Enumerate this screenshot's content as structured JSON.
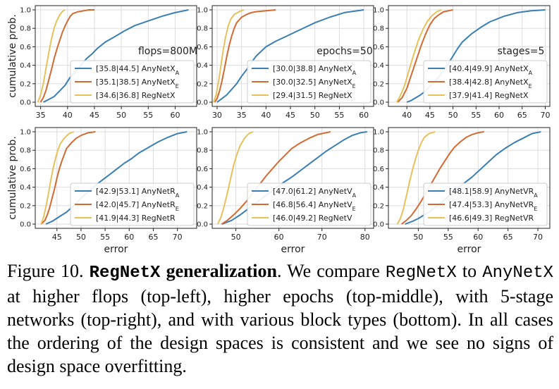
{
  "caption": {
    "figure_label": "Figure 10.",
    "title_mono": "RegNetX",
    "title_rest": "generalization",
    "sentence_1_a": "We compare",
    "sentence_1_mono_a": "RegNetX",
    "sentence_1_b": "to",
    "sentence_1_mono_b": "AnyNetX",
    "sentence_1_c": "at higher flops (top-left), higher epochs (top-middle), with 5-stage networks (top-right), and with various block types (bottom).",
    "sentence_2": "In all cases the ordering of the design spaces is consistent and we see no signs of design space overfitting."
  },
  "colors": {
    "blue": "#3a7fb4",
    "orange": "#d46a32",
    "yellow": "#e8c15a",
    "frame": "#222222",
    "grid": "#dddddd"
  },
  "chart_data": [
    {
      "type": "line",
      "title": "",
      "annotation": "flops=800M",
      "ylabel": "cumulative prob.",
      "xlabel": "",
      "xlim": [
        34,
        64
      ],
      "ylim": [
        0,
        1
      ],
      "xticks": [
        35,
        40,
        45,
        50,
        55,
        60
      ],
      "yticks": [
        0.0,
        0.2,
        0.4,
        0.6,
        0.8,
        1.0
      ],
      "legend_position": "right",
      "series": [
        {
          "name": "[35.8|44.5] AnyNetX",
          "sub": "A",
          "color": "blue",
          "x": [
            35.5,
            36.5,
            37.5,
            38.5,
            39.5,
            40.5,
            41.5,
            42.5,
            43.5,
            44.5,
            45.5,
            47,
            48.5,
            50.5,
            52.5,
            55,
            57.5,
            60,
            62.5
          ],
          "y": [
            0,
            0.03,
            0.06,
            0.12,
            0.18,
            0.27,
            0.33,
            0.4,
            0.47,
            0.52,
            0.58,
            0.65,
            0.7,
            0.77,
            0.83,
            0.88,
            0.93,
            0.97,
            1.0
          ]
        },
        {
          "name": "[35.1|38.5] AnyNetX",
          "sub": "E",
          "color": "orange",
          "x": [
            35,
            35.5,
            36,
            36.5,
            37,
            37.5,
            38,
            38.5,
            39,
            39.5,
            40,
            40.5,
            41,
            42,
            43,
            44,
            45
          ],
          "y": [
            0,
            0.05,
            0.13,
            0.24,
            0.35,
            0.47,
            0.57,
            0.66,
            0.75,
            0.82,
            0.88,
            0.93,
            0.96,
            0.98,
            0.99,
            1.0,
            1.0
          ]
        },
        {
          "name": "[34.6|36.8] RegNetX",
          "sub": "",
          "color": "yellow",
          "x": [
            34.5,
            35,
            35.5,
            36,
            36.5,
            37,
            37.5,
            38,
            38.5,
            39,
            39.5
          ],
          "y": [
            0,
            0.08,
            0.2,
            0.37,
            0.53,
            0.68,
            0.8,
            0.88,
            0.94,
            0.98,
            1.0
          ]
        }
      ]
    },
    {
      "type": "line",
      "title": "",
      "annotation": "epochs=50",
      "ylabel": "",
      "xlabel": "",
      "xlim": [
        29,
        62
      ],
      "ylim": [
        0,
        1
      ],
      "xticks": [
        30,
        35,
        40,
        45,
        50,
        55,
        60
      ],
      "yticks": [
        0.0,
        0.2,
        0.4,
        0.6,
        0.8,
        1.0
      ],
      "legend_position": "right",
      "series": [
        {
          "name": "[30.0|38.8] AnyNetX",
          "sub": "A",
          "color": "blue",
          "x": [
            30,
            31,
            32,
            33,
            34,
            35,
            36,
            37,
            38,
            39,
            40,
            42,
            44,
            46,
            48,
            50,
            53,
            56,
            60
          ],
          "y": [
            0,
            0.04,
            0.08,
            0.14,
            0.2,
            0.28,
            0.35,
            0.43,
            0.5,
            0.55,
            0.6,
            0.66,
            0.71,
            0.76,
            0.81,
            0.86,
            0.92,
            0.97,
            1.0
          ]
        },
        {
          "name": "[30.0|32.5] AnyNetX",
          "sub": "E",
          "color": "orange",
          "x": [
            29.5,
            30,
            30.5,
            31,
            31.5,
            32,
            32.5,
            33,
            33.5,
            34,
            35,
            36,
            37,
            38,
            40,
            42
          ],
          "y": [
            0,
            0.04,
            0.12,
            0.23,
            0.36,
            0.5,
            0.62,
            0.72,
            0.8,
            0.86,
            0.92,
            0.95,
            0.97,
            0.98,
            0.99,
            1.0
          ]
        },
        {
          "name": "[29.4|31.5] RegNetX",
          "sub": "",
          "color": "yellow",
          "x": [
            29.3,
            29.8,
            30.3,
            30.8,
            31.3,
            31.8,
            32.3,
            32.8,
            33.5,
            34.5,
            35.5
          ],
          "y": [
            0,
            0.08,
            0.22,
            0.4,
            0.58,
            0.72,
            0.83,
            0.9,
            0.95,
            0.98,
            1.0
          ]
        }
      ]
    },
    {
      "type": "line",
      "title": "",
      "annotation": "stages=5",
      "ylabel": "",
      "xlabel": "",
      "xlim": [
        36,
        71
      ],
      "ylim": [
        0,
        1
      ],
      "xticks": [
        40,
        45,
        50,
        55,
        60,
        65,
        70
      ],
      "yticks": [
        0.0,
        0.2,
        0.4,
        0.6,
        0.8,
        1.0
      ],
      "legend_position": "right",
      "series": [
        {
          "name": "[40.4|49.9] AnyNetX",
          "sub": "A",
          "color": "blue",
          "x": [
            40,
            41,
            42,
            43,
            44,
            45,
            46,
            47,
            48,
            49,
            50,
            51,
            52,
            54,
            56,
            58,
            61,
            64,
            67,
            70
          ],
          "y": [
            0,
            0.02,
            0.05,
            0.08,
            0.12,
            0.17,
            0.22,
            0.28,
            0.35,
            0.42,
            0.5,
            0.58,
            0.65,
            0.74,
            0.81,
            0.87,
            0.93,
            0.97,
            0.99,
            1.0
          ]
        },
        {
          "name": "[38.4|42.8] AnyNetX",
          "sub": "E",
          "color": "orange",
          "x": [
            38,
            39,
            40,
            41,
            42,
            43,
            44,
            45,
            46,
            47,
            48,
            49,
            50
          ],
          "y": [
            0,
            0.05,
            0.15,
            0.3,
            0.45,
            0.6,
            0.73,
            0.84,
            0.91,
            0.95,
            0.98,
            0.99,
            1.0
          ]
        },
        {
          "name": "[37.9|41.4] RegNetX",
          "sub": "",
          "color": "yellow",
          "x": [
            37.8,
            38.5,
            39.5,
            40.5,
            41.5,
            42.5,
            43.5,
            44.5,
            45.5,
            46.5,
            47.5
          ],
          "y": [
            0,
            0.06,
            0.18,
            0.35,
            0.52,
            0.67,
            0.79,
            0.88,
            0.94,
            0.98,
            1.0
          ]
        }
      ]
    },
    {
      "type": "line",
      "title": "",
      "annotation": "",
      "ylabel": "cumulative prob.",
      "xlabel": "error",
      "xlim": [
        40.5,
        74
      ],
      "ylim": [
        0,
        1
      ],
      "xticks": [
        45,
        50,
        55,
        60,
        65,
        70
      ],
      "yticks": [
        0.0,
        0.2,
        0.4,
        0.6,
        0.8,
        1.0
      ],
      "legend_position": "lower-right",
      "series": [
        {
          "name": "[42.9|53.1] AnyNetR",
          "sub": "A",
          "color": "blue",
          "x": [
            42.7,
            44,
            45.5,
            47,
            48.5,
            50,
            51.5,
            53,
            54.5,
            56,
            57.5,
            59,
            60.5,
            62,
            64,
            66,
            68,
            70,
            72
          ],
          "y": [
            0,
            0.03,
            0.08,
            0.13,
            0.2,
            0.28,
            0.35,
            0.42,
            0.48,
            0.54,
            0.6,
            0.66,
            0.71,
            0.77,
            0.83,
            0.89,
            0.94,
            0.98,
            1.0
          ]
        },
        {
          "name": "[42.0|45.7] AnyNetR",
          "sub": "E",
          "color": "orange",
          "x": [
            41.7,
            42.5,
            43,
            43.5,
            44,
            44.5,
            45,
            45.5,
            46,
            46.5,
            47,
            48,
            49,
            50,
            51.5,
            53
          ],
          "y": [
            0,
            0.04,
            0.1,
            0.18,
            0.28,
            0.38,
            0.5,
            0.6,
            0.68,
            0.75,
            0.82,
            0.88,
            0.93,
            0.96,
            0.99,
            1.0
          ]
        },
        {
          "name": "[41.9|44.3] RegNetR",
          "sub": "",
          "color": "yellow",
          "x": [
            41.7,
            42.2,
            42.7,
            43.2,
            43.7,
            44.2,
            44.7,
            45.2,
            45.7,
            46.5,
            47.5,
            48.5
          ],
          "y": [
            0,
            0.07,
            0.18,
            0.32,
            0.47,
            0.6,
            0.71,
            0.8,
            0.87,
            0.93,
            0.98,
            1.0
          ]
        }
      ]
    },
    {
      "type": "line",
      "title": "",
      "annotation": "",
      "ylabel": "",
      "xlabel": "error",
      "xlim": [
        44.5,
        82
      ],
      "ylim": [
        0,
        1
      ],
      "xticks": [
        50,
        60,
        70,
        80
      ],
      "yticks": [
        0.0,
        0.2,
        0.4,
        0.6,
        0.8,
        1.0
      ],
      "legend_position": "lower-right",
      "series": [
        {
          "name": "[47.0|61.2] AnyNetV",
          "sub": "A",
          "color": "blue",
          "x": [
            46.8,
            49,
            51,
            53,
            55,
            57,
            59,
            61,
            63,
            65,
            67,
            69,
            71,
            73,
            75,
            77,
            79,
            80.5
          ],
          "y": [
            0,
            0.04,
            0.1,
            0.17,
            0.24,
            0.31,
            0.38,
            0.45,
            0.51,
            0.58,
            0.65,
            0.72,
            0.79,
            0.85,
            0.91,
            0.96,
            0.99,
            1.0
          ]
        },
        {
          "name": "[46.8|56.4] AnyNetV",
          "sub": "E",
          "color": "orange",
          "x": [
            46.7,
            48,
            49.5,
            51,
            52.5,
            54,
            55.5,
            57,
            58.5,
            60,
            61.5,
            63,
            65,
            67,
            69,
            71,
            72
          ],
          "y": [
            0,
            0.04,
            0.1,
            0.17,
            0.25,
            0.34,
            0.43,
            0.52,
            0.6,
            0.68,
            0.75,
            0.82,
            0.88,
            0.93,
            0.97,
            0.99,
            1.0
          ]
        },
        {
          "name": "[46.0|49.2] RegNetV",
          "sub": "",
          "color": "yellow",
          "x": [
            45.8,
            46.5,
            47.2,
            48,
            48.8,
            49.5,
            50.2,
            51,
            52,
            53,
            54
          ],
          "y": [
            0,
            0.07,
            0.18,
            0.33,
            0.5,
            0.64,
            0.75,
            0.85,
            0.93,
            0.98,
            1.0
          ]
        }
      ]
    },
    {
      "type": "line",
      "title": "",
      "annotation": "",
      "ylabel": "",
      "xlabel": "error",
      "xlim": [
        45,
        72
      ],
      "ylim": [
        0,
        1
      ],
      "xticks": [
        50,
        55,
        60,
        65,
        70
      ],
      "yticks": [
        0.0,
        0.2,
        0.4,
        0.6,
        0.8,
        1.0
      ],
      "legend_position": "lower-right",
      "series": [
        {
          "name": "[48.1|58.9] AnyNetVR",
          "sub": "A",
          "color": "blue",
          "x": [
            47.8,
            49,
            50,
            51,
            52,
            53,
            54,
            55,
            56,
            57,
            58,
            59,
            60,
            61,
            62,
            63,
            64.5,
            66,
            67.5,
            69,
            70.5
          ],
          "y": [
            0,
            0.03,
            0.06,
            0.1,
            0.14,
            0.19,
            0.24,
            0.3,
            0.35,
            0.41,
            0.46,
            0.51,
            0.57,
            0.63,
            0.69,
            0.75,
            0.82,
            0.88,
            0.93,
            0.98,
            1.0
          ]
        },
        {
          "name": "[47.4|53.3] AnyNetVR",
          "sub": "E",
          "color": "orange",
          "x": [
            47.2,
            48,
            48.8,
            49.6,
            50.4,
            51.2,
            52,
            52.8,
            53.6,
            54.4,
            55.2,
            56,
            57,
            58,
            59,
            60,
            61
          ],
          "y": [
            0,
            0.04,
            0.09,
            0.16,
            0.24,
            0.33,
            0.42,
            0.51,
            0.6,
            0.68,
            0.76,
            0.83,
            0.89,
            0.94,
            0.97,
            0.99,
            1.0
          ]
        },
        {
          "name": "[46.6|49.3] RegNetVR",
          "sub": "",
          "color": "yellow",
          "x": [
            46.5,
            47,
            47.5,
            48,
            48.5,
            49,
            49.5,
            50,
            50.5,
            51,
            51.8,
            52.8
          ],
          "y": [
            0,
            0.06,
            0.16,
            0.3,
            0.45,
            0.58,
            0.7,
            0.8,
            0.88,
            0.94,
            0.98,
            1.0
          ]
        }
      ]
    }
  ]
}
